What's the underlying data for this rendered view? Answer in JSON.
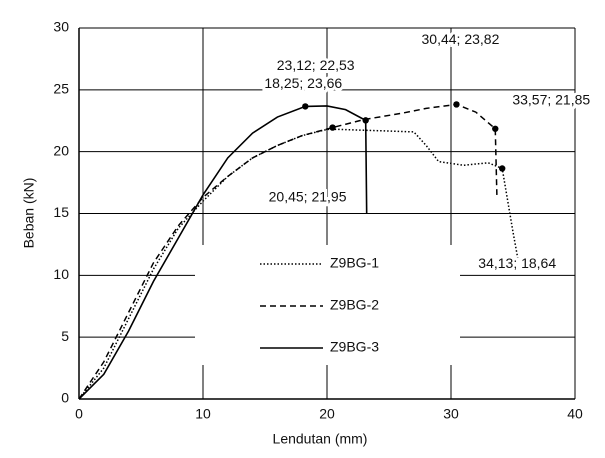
{
  "chart_data": {
    "type": "line",
    "x_label": "Lendutan (mm)",
    "y_label": "Beban (kN)",
    "xlim": [
      0,
      40
    ],
    "xticks": [
      0,
      10,
      20,
      30,
      40
    ],
    "ylim": [
      0,
      30
    ],
    "yticks": [
      0,
      5,
      10,
      15,
      20,
      25,
      30
    ],
    "grid": true,
    "legend_position": "center",
    "series": [
      {
        "name": "Z9BG-1",
        "color": "#000000",
        "style": "dotted",
        "x": [
          0,
          2,
          4,
          6,
          8,
          10,
          12,
          14,
          16,
          18,
          20,
          21,
          24,
          27,
          28,
          29,
          31,
          33,
          34.13,
          35,
          35.4
        ],
        "values": [
          0,
          2.5,
          6.5,
          10.5,
          13.8,
          16,
          18,
          19.5,
          20.5,
          21.3,
          21.8,
          21.8,
          21.7,
          21.6,
          20.5,
          19.2,
          18.9,
          19.1,
          18.64,
          13.5,
          11.3
        ]
      },
      {
        "name": "Z9BG-2",
        "color": "#000000",
        "style": "dashed",
        "x": [
          0,
          2,
          4,
          6,
          8,
          10,
          12,
          14,
          16,
          18,
          20.45,
          23,
          26,
          28,
          30.44,
          32,
          33.57,
          33.7
        ],
        "values": [
          0,
          3,
          7,
          11,
          14,
          16.3,
          18,
          19.5,
          20.5,
          21.3,
          21.95,
          22.6,
          23.1,
          23.5,
          23.82,
          23.2,
          21.85,
          16.5
        ]
      },
      {
        "name": "Z9BG-3",
        "color": "#000000",
        "style": "solid",
        "x": [
          0,
          2,
          4,
          6,
          8,
          10,
          12,
          14,
          16,
          18.25,
          20,
          21.5,
          23.12,
          23.2
        ],
        "values": [
          0,
          2,
          5.5,
          9.5,
          13,
          16.5,
          19.5,
          21.5,
          22.8,
          23.66,
          23.7,
          23.4,
          22.53,
          15
        ]
      }
    ],
    "annotations": [
      {
        "text": "18,25; 23,66",
        "x": 18.25,
        "y": 23.66
      },
      {
        "text": "23,12; 22,53",
        "x": 23.12,
        "y": 22.53
      },
      {
        "text": "30,44; 23,82",
        "x": 30.44,
        "y": 23.82
      },
      {
        "text": "33,57; 21,85",
        "x": 33.57,
        "y": 21.85
      },
      {
        "text": "20,45; 21,95",
        "x": 20.45,
        "y": 21.95
      },
      {
        "text": "34,13; 18,64",
        "x": 34.13,
        "y": 18.64
      }
    ]
  }
}
